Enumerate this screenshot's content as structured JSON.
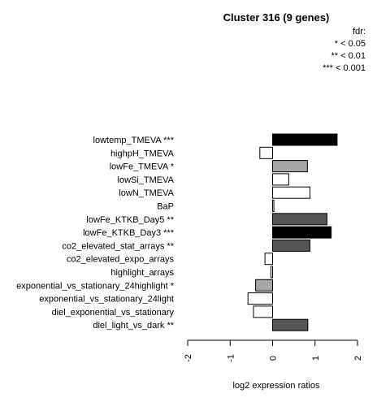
{
  "chart_data": {
    "type": "bar",
    "orientation": "horizontal",
    "title": "Cluster 316 (9 genes)",
    "xlabel": "log2 expression ratios",
    "ylabel": "",
    "xlim": [
      -2,
      2
    ],
    "xticks": [
      "-2",
      "-1",
      "0",
      "1",
      "2"
    ],
    "legend": {
      "title": "fdr:",
      "entries": [
        "* < 0.05",
        "** < 0.01",
        "*** < 0.001"
      ],
      "placement": "top-right"
    },
    "categories": [
      "lowtemp_TMEVA ***",
      "highpH_TMEVA",
      "lowFe_TMEVA *",
      "lowSi_TMEVA",
      "lowN_TMEVA",
      "BaP",
      "lowFe_KTKB_Day5 **",
      "lowFe_KTKB_Day3 ***",
      "co2_elevated_stat_arrays **",
      "co2_elevated_expo_arrays",
      "highlight_arrays",
      "exponential_vs_stationary_24highlight *",
      "exponential_vs_stationary_24light",
      "diel_exponential_vs_stationary",
      "diel_light_vs_dark **"
    ],
    "values": [
      1.52,
      -0.3,
      0.82,
      0.38,
      0.88,
      0.03,
      1.28,
      1.38,
      0.88,
      -0.18,
      -0.04,
      -0.4,
      -0.58,
      -0.45,
      0.83
    ],
    "bar_colors": [
      "#000000",
      "#ffffff",
      "#a6a6a6",
      "#ffffff",
      "#ffffff",
      "#ffffff",
      "#555555",
      "#000000",
      "#555555",
      "#ffffff",
      "#ffffff",
      "#a6a6a6",
      "#ffffff",
      "#ffffff",
      "#555555"
    ]
  }
}
